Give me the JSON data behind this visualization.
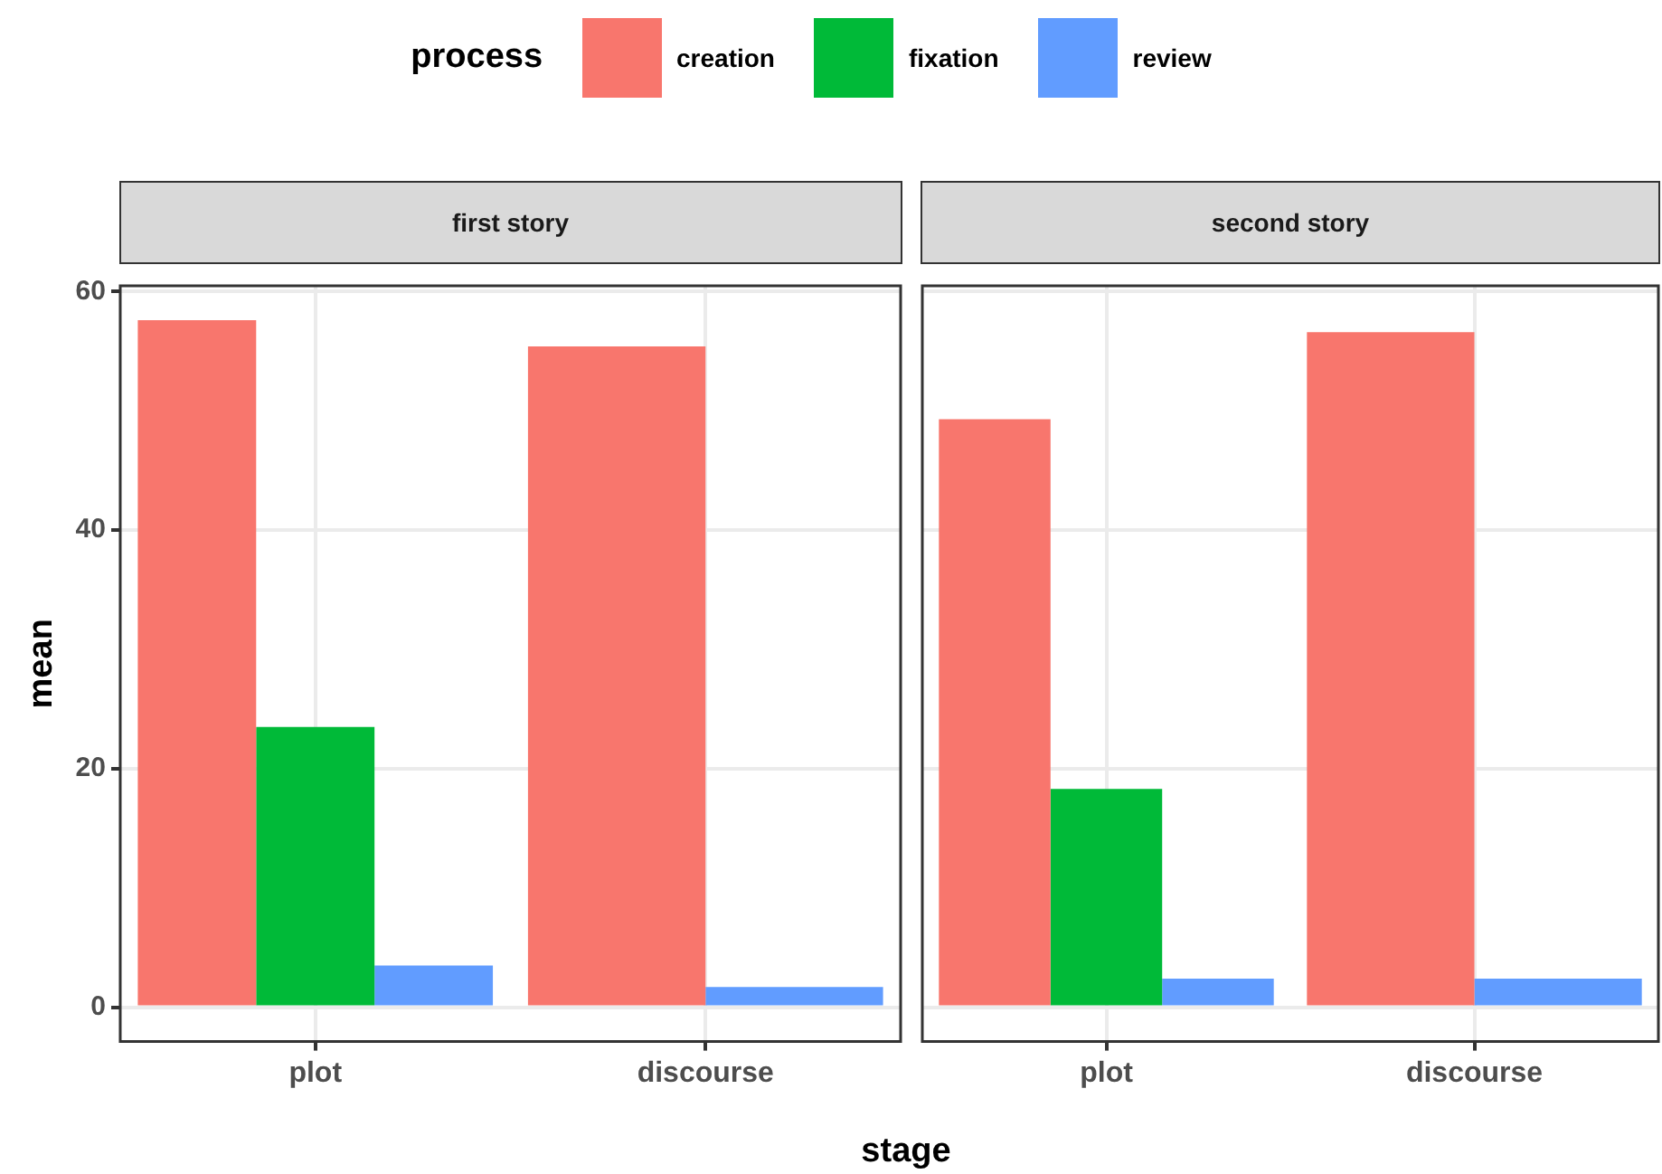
{
  "chart_data": [
    {
      "type": "bar",
      "title": "first story",
      "xlabel": "stage",
      "ylabel": "mean",
      "legend_title": "process",
      "legend": "top",
      "grid": true,
      "categories": [
        "plot",
        "discourse"
      ],
      "series": [
        {
          "name": "creation",
          "color": "#f8766d",
          "values": [
            57.6,
            55.4
          ]
        },
        {
          "name": "fixation",
          "color": "#00ba38",
          "values": [
            23.5,
            null
          ]
        },
        {
          "name": "review",
          "color": "#619cff",
          "values": [
            3.5,
            1.7
          ]
        }
      ],
      "ylim": [
        -2.88,
        60.48
      ],
      "yticks": [
        0,
        20,
        40,
        60
      ]
    },
    {
      "type": "bar",
      "title": "second story",
      "grid": true,
      "tick_labels": "x",
      "categories": [
        "plot",
        "discourse"
      ],
      "series": [
        {
          "color": "#f8766d",
          "values": [
            49.3,
            56.6
          ]
        },
        {
          "color": "#00ba38",
          "values": [
            18.3,
            null
          ]
        },
        {
          "color": "#619cff",
          "values": [
            2.4,
            2.4
          ]
        }
      ],
      "ylim": [
        -2.88,
        60.48
      ],
      "yticks": [
        0,
        20,
        40,
        60
      ]
    }
  ]
}
